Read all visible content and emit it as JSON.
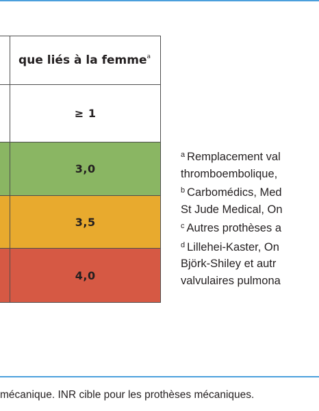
{
  "table": {
    "header": {
      "text": "que liés à la femme",
      "sup": "a"
    },
    "ratio_header": "≥ 1",
    "rows": [
      {
        "value": "3,0",
        "color": "#8ab663"
      },
      {
        "value": "3,5",
        "color": "#e8aa2e"
      },
      {
        "value": "4,0",
        "color": "#d65944"
      }
    ]
  },
  "notes": [
    {
      "sup": "a",
      "text": "Remplacement val"
    },
    {
      "sup": "",
      "text": "thromboembolique,"
    },
    {
      "sup": "b",
      "text": "Carbomédics, Med"
    },
    {
      "sup": "",
      "text": "St Jude Medical, On"
    },
    {
      "sup": "c",
      "text": "Autres prothèses a"
    },
    {
      "sup": "d",
      "text": "Lillehei-Kaster, On"
    },
    {
      "sup": "",
      "text": "Björk-Shiley et autr"
    },
    {
      "sup": "",
      "text": "valvulaires pulmona"
    }
  ],
  "caption": "mécanique. INR cible pour les prothèses mécaniques.",
  "colors": {
    "frame": "#4a9fdc"
  }
}
